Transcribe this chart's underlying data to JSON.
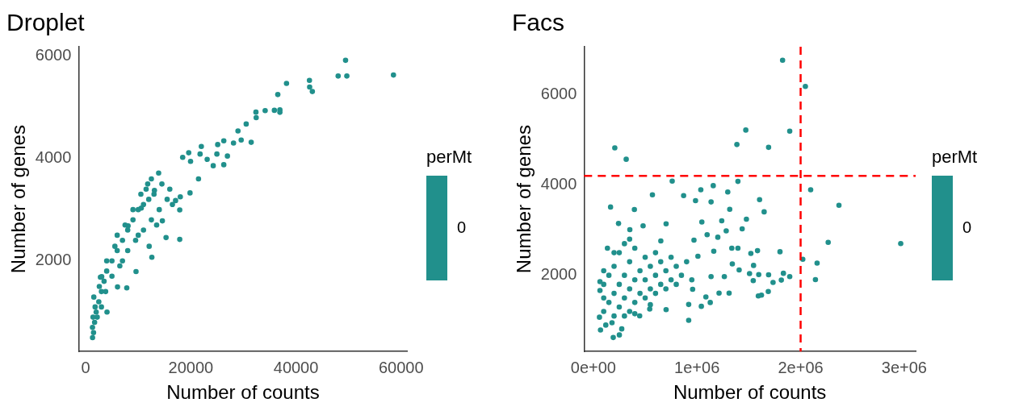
{
  "chart_data": [
    {
      "type": "scatter",
      "title": "Droplet",
      "xlabel": "Number of counts",
      "ylabel": "Number of genes",
      "legend_title": "perMt",
      "legend": "right",
      "marker": "circle",
      "grid": false,
      "xlim": [
        -1350,
        61200
      ],
      "ylim": [
        230,
        6180
      ],
      "xticks": [
        0,
        20000,
        40000,
        60000
      ],
      "yticks": [
        2000,
        4000,
        6000
      ],
      "series": [
        {
          "name": "0",
          "color": "#21908c",
          "x": [
            49430,
            58540,
            48020,
            49670,
            42560,
            42600,
            43110,
            38200,
            36540,
            32380,
            32430,
            34140,
            35890,
            36940,
            36940,
            30530,
            28970,
            29580,
            31480,
            28120,
            26270,
            25110,
            26960,
            26270,
            24260,
            24960,
            23110,
            22000,
            21760,
            19600,
            18450,
            19950,
            21460,
            19850,
            13880,
            17890,
            17890,
            15290,
            12590,
            7820,
            2810,
            1310,
            1550,
            3050,
            5560,
            8070,
            10570,
            13080,
            4060,
            6060,
            9580,
            12080,
            14590,
            17100,
            1500,
            1700,
            2000,
            2500,
            3000,
            3500,
            4000,
            5000,
            6000,
            7000,
            8000,
            9000,
            10000,
            11000,
            12000,
            13000,
            5000,
            6500,
            8000,
            9500,
            11000,
            12500,
            14000,
            15500,
            4000,
            6000,
            9000,
            11500,
            12500,
            14500,
            16000,
            1800,
            2200,
            3000,
            1300,
            1400,
            2600,
            3800,
            7000,
            10000,
            13500,
            16500,
            18000,
            7500,
            10500,
            11800
          ],
          "values": [
            5915,
            5628,
            5608,
            5608,
            5524,
            5394,
            5305,
            5464,
            5246,
            4903,
            4795,
            4933,
            4939,
            4948,
            4900,
            4671,
            4537,
            4359,
            4314,
            4300,
            4344,
            4270,
            4046,
            3877,
            3857,
            4085,
            3981,
            4234,
            4085,
            4110,
            4021,
            3942,
            3600,
            3326,
            3713,
            2994,
            2418,
            2454,
            2071,
            1472,
            1680,
            500,
            1293,
            1690,
            2284,
            2682,
            3030,
            3376,
            1000,
            1490,
            1790,
            2284,
            2780,
            3177,
            600,
            800,
            1000,
            1200,
            1400,
            1600,
            1800,
            2000,
            2200,
            2400,
            2600,
            2800,
            3000,
            3100,
            3200,
            3300,
            1700,
            1900,
            2200,
            2400,
            2600,
            2800,
            3000,
            3200,
            2000,
            2500,
            3000,
            3400,
            3600,
            3500,
            3400,
            1100,
            900,
            1100,
            700,
            900,
            1500,
            1400,
            2000,
            2500,
            2700,
            3100,
            3250,
            2700,
            3300,
            3500
          ]
        }
      ]
    },
    {
      "type": "scatter",
      "title": "Facs",
      "xlabel": "Number of counts",
      "ylabel": "Number of genes",
      "legend_title": "perMt",
      "legend": "right",
      "marker": "circle",
      "grid": false,
      "xlim": [
        -90000,
        3110000
      ],
      "ylim": [
        315,
        7056
      ],
      "xticks": [
        {
          "value": 0,
          "label": "0e+00"
        },
        {
          "value": 1000000,
          "label": "1e+06"
        },
        {
          "value": 2000000,
          "label": "2e+06"
        },
        {
          "value": 3000000,
          "label": "3e+06"
        }
      ],
      "yticks": [
        2000,
        4000,
        6000
      ],
      "ref_lines": [
        {
          "axis": "x",
          "value": 2000000,
          "color": "#ff0000",
          "line_style": "dashed"
        },
        {
          "axis": "y",
          "value": 4200,
          "color": "#ff0000",
          "line_style": "dashed"
        }
      ],
      "series": [
        {
          "name": "0",
          "color": "#21908c",
          "x": [
            1826000,
            2046000,
            1471000,
            1895000,
            1385000,
            1691000,
            207000,
            317000,
            761000,
            1395000,
            1157000,
            2097000,
            1037000,
            2370000,
            1297000,
            166000,
            570000,
            871000,
            986000,
            1136000,
            1604000,
            1316000,
            1648000,
            1477000,
            2966000,
            2266000,
            2021000,
            2159000,
            2143000,
            1801000,
            1895000,
            1814000,
            1834000,
            1691000,
            1734000,
            1688000,
            1622000,
            1592000,
            1584000,
            1520000,
            1546000,
            1507000,
            1543000,
            1596000,
            1407000,
            1395000,
            1336000,
            1282000,
            1436000,
            920000,
            1042000,
            1128000,
            1213000,
            1310000,
            274000,
            192000,
            69000,
            251000,
            136000,
            243000,
            396000,
            352000,
            480000,
            702000,
            1047000,
            1239000,
            1098000,
            1201000,
            651000,
            971000,
            1009000,
            1162000,
            1341000,
            1264000,
            1136000,
            1086000,
            958000,
            920000,
            702000,
            544000,
            447000,
            59000,
            64000,
            64000,
            100000,
            100000,
            100000,
            150000,
            150000,
            200000,
            200000,
            200000,
            250000,
            250000,
            250000,
            300000,
            300000,
            300000,
            350000,
            350000,
            350000,
            400000,
            400000,
            400000,
            450000,
            450000,
            500000,
            500000,
            500000,
            550000,
            550000,
            600000,
            600000,
            600000,
            650000,
            650000,
            700000,
            700000,
            750000,
            750000,
            800000,
            800000,
            850000,
            900000,
            950000,
            120000,
            180000,
            300000,
            400000,
            550000,
            100000,
            200000,
            350000
          ],
          "values": [
            6757,
            6179,
            5213,
            5190,
            4893,
            4831,
            4819,
            4567,
            4084,
            4078,
            3983,
            3893,
            3893,
            3550,
            3842,
            3511,
            3781,
            3764,
            3651,
            3623,
            3673,
            3460,
            3404,
            3241,
            2702,
            2730,
            2354,
            2270,
            1904,
            2522,
            1972,
            1894,
            2045,
            2011,
            1843,
            1641,
            1562,
            1545,
            2545,
            2484,
            2219,
            2039,
            1882,
            2017,
            2118,
            2601,
            2601,
            2983,
            3028,
            1006,
            1314,
            1399,
            1607,
            1607,
            815,
            624,
            792,
            681,
            2601,
            3146,
            3455,
            3011,
            3095,
            3140,
            3179,
            3207,
            2898,
            2842,
            2760,
            2778,
            2421,
            2533,
            2253,
            1972,
            1972,
            1523,
            1692,
            1355,
            1242,
            1253,
            1102,
            1073,
            1860,
            1663,
            1200,
            1500,
            1800,
            1400,
            2000,
            1100,
            1600,
            2200,
            1300,
            1800,
            2500,
            1500,
            2000,
            2700,
            1200,
            1700,
            2300,
            1400,
            1900,
            2600,
            1600,
            2100,
            1500,
            1900,
            2400,
            1700,
            2200,
            1600,
            2000,
            2500,
            1800,
            2300,
            1700,
            2100,
            1900,
            2400,
            1800,
            2200,
            2000,
            2300,
            1900,
            900,
            950,
            1100,
            1150,
            1350,
            2100,
            2500,
            2800
          ]
        }
      ]
    }
  ]
}
